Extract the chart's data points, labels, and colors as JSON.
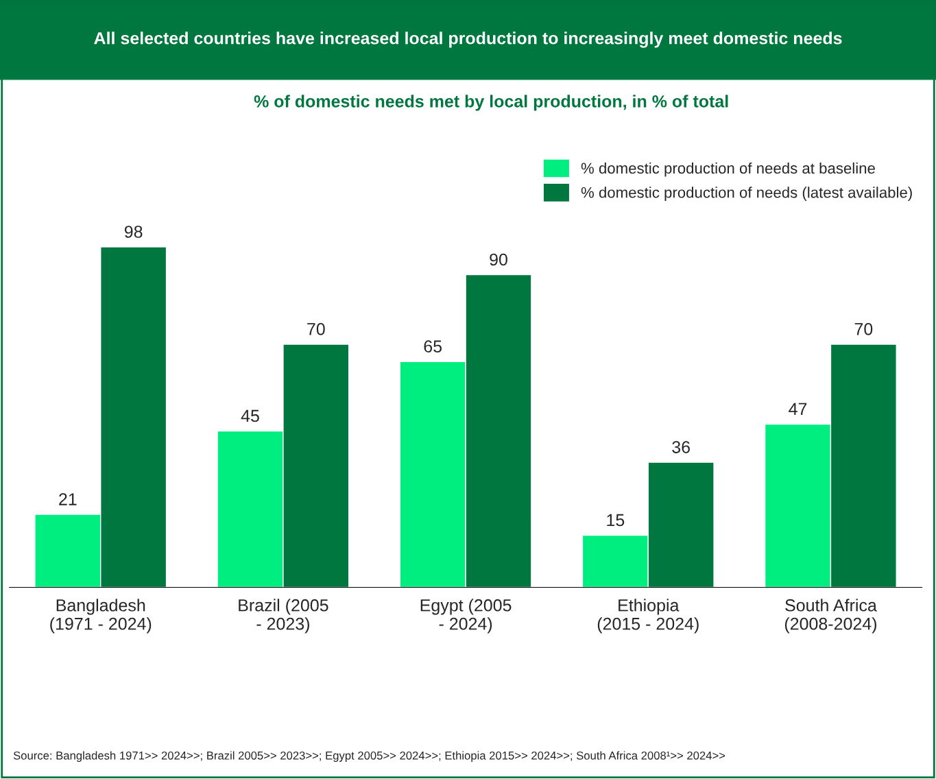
{
  "chart_data": {
    "type": "bar",
    "title": "All selected countries have increased local production to increasingly meet domestic needs",
    "subtitle": "% of domestic needs met by local production, in % of total",
    "categories": [
      "Bangladesh\n(1971 - 2024)",
      "Brazil (2005\n- 2023)",
      "Egypt (2005\n- 2024)",
      "Ethiopia\n(2015 - 2024)",
      "South Africa\n(2008-2024)"
    ],
    "series": [
      {
        "name": "% domestic production of needs at baseline",
        "color": "#00ee80",
        "values": [
          21,
          45,
          65,
          15,
          47
        ]
      },
      {
        "name": "% domestic production of needs (latest available)",
        "color": "#00773f",
        "values": [
          98,
          70,
          90,
          36,
          70
        ]
      }
    ],
    "data_labels": true,
    "legend": "top right",
    "grid": false,
    "annotations": [
      "Source: Bangladesh 1971>> 2024>>; Brazil 2005>> 2023>>; Egypt 2005>> 2024>>; Ethiopia 2015>> 2024>>; South Africa 2008¹>> 2024>>"
    ]
  }
}
